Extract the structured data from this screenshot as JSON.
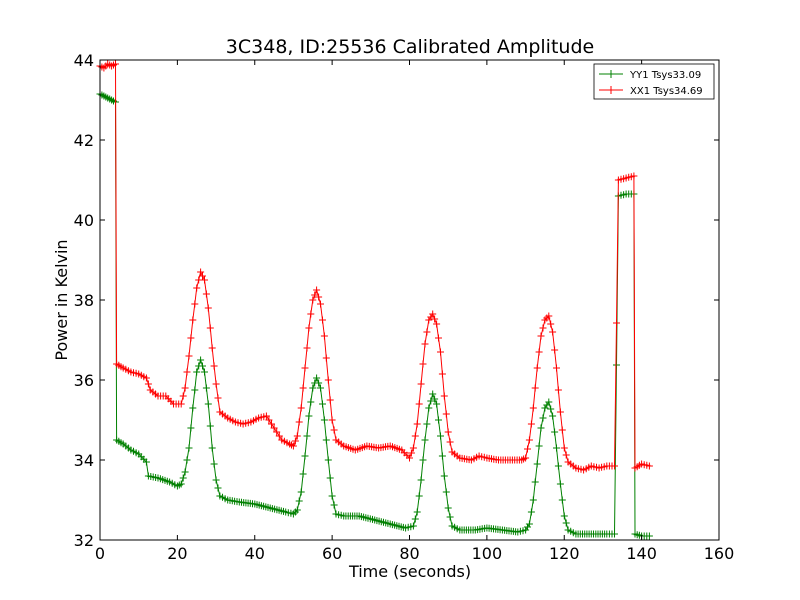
{
  "chart_data": {
    "type": "line",
    "title": "3C348, ID:25536 Calibrated Amplitude",
    "xlabel": "Time (seconds)",
    "ylabel": "Power in Kelvin",
    "xlim": [
      0,
      160
    ],
    "ylim": [
      32,
      44
    ],
    "xticks": [
      "0",
      "20",
      "40",
      "60",
      "80",
      "100",
      "120",
      "140",
      "160"
    ],
    "yticks": [
      "32",
      "34",
      "36",
      "38",
      "40",
      "42",
      "44"
    ],
    "grid": false,
    "legend_position": "top-right",
    "marker": "plus",
    "series": [
      {
        "name": "YY1 Tsys33.09",
        "color": "#008000",
        "points": [
          [
            0,
            43.15
          ],
          [
            1,
            43.1
          ],
          [
            2,
            43.05
          ],
          [
            3,
            43.0
          ],
          [
            4,
            42.95
          ],
          [
            4.3,
            34.5
          ],
          [
            6,
            34.4
          ],
          [
            8,
            34.25
          ],
          [
            10,
            34.15
          ],
          [
            12,
            33.95
          ],
          [
            12.5,
            33.6
          ],
          [
            15,
            33.55
          ],
          [
            18,
            33.45
          ],
          [
            20,
            33.35
          ],
          [
            21,
            33.4
          ],
          [
            22,
            33.7
          ],
          [
            23,
            34.3
          ],
          [
            24,
            35.3
          ],
          [
            25,
            36.2
          ],
          [
            26,
            36.5
          ],
          [
            27,
            36.2
          ],
          [
            28,
            35.4
          ],
          [
            29,
            34.3
          ],
          [
            30,
            33.5
          ],
          [
            31,
            33.1
          ],
          [
            33,
            33.0
          ],
          [
            36,
            32.95
          ],
          [
            40,
            32.9
          ],
          [
            44,
            32.8
          ],
          [
            48,
            32.7
          ],
          [
            50,
            32.65
          ],
          [
            51,
            32.75
          ],
          [
            52,
            33.2
          ],
          [
            53,
            34.1
          ],
          [
            54,
            35.1
          ],
          [
            55,
            35.8
          ],
          [
            56,
            36.05
          ],
          [
            57,
            35.8
          ],
          [
            58,
            35.0
          ],
          [
            59,
            34.0
          ],
          [
            60,
            33.1
          ],
          [
            61,
            32.65
          ],
          [
            63,
            32.6
          ],
          [
            67,
            32.6
          ],
          [
            71,
            32.5
          ],
          [
            75,
            32.4
          ],
          [
            79,
            32.3
          ],
          [
            81,
            32.35
          ],
          [
            82,
            32.7
          ],
          [
            83,
            33.5
          ],
          [
            84,
            34.5
          ],
          [
            85,
            35.3
          ],
          [
            86,
            35.65
          ],
          [
            87,
            35.4
          ],
          [
            88,
            34.6
          ],
          [
            89,
            33.6
          ],
          [
            90,
            32.8
          ],
          [
            91,
            32.35
          ],
          [
            93,
            32.25
          ],
          [
            97,
            32.25
          ],
          [
            100,
            32.3
          ],
          [
            104,
            32.25
          ],
          [
            108,
            32.2
          ],
          [
            110,
            32.25
          ],
          [
            111,
            32.4
          ],
          [
            112,
            33.0
          ],
          [
            113,
            33.9
          ],
          [
            114,
            34.8
          ],
          [
            115,
            35.3
          ],
          [
            116,
            35.45
          ],
          [
            117,
            35.1
          ],
          [
            118,
            34.3
          ],
          [
            119,
            33.4
          ],
          [
            120,
            32.6
          ],
          [
            121,
            32.25
          ],
          [
            123,
            32.15
          ],
          [
            127,
            32.15
          ],
          [
            131,
            32.15
          ],
          [
            133,
            32.15
          ],
          [
            134,
            40.6
          ],
          [
            136,
            40.65
          ],
          [
            138,
            40.65
          ],
          [
            138.3,
            32.15
          ],
          [
            140,
            32.1
          ],
          [
            142,
            32.1
          ]
        ]
      },
      {
        "name": "XX1 Tsys34.69",
        "color": "#ff0000",
        "points": [
          [
            0,
            43.85
          ],
          [
            1,
            43.8
          ],
          [
            2,
            43.9
          ],
          [
            3,
            43.85
          ],
          [
            4,
            43.9
          ],
          [
            4.3,
            36.4
          ],
          [
            6,
            36.3
          ],
          [
            8,
            36.2
          ],
          [
            10,
            36.15
          ],
          [
            12,
            36.05
          ],
          [
            13,
            35.75
          ],
          [
            15,
            35.6
          ],
          [
            17,
            35.6
          ],
          [
            19,
            35.4
          ],
          [
            21,
            35.4
          ],
          [
            22,
            35.8
          ],
          [
            23,
            36.6
          ],
          [
            24,
            37.5
          ],
          [
            25,
            38.3
          ],
          [
            26,
            38.7
          ],
          [
            27,
            38.5
          ],
          [
            28,
            37.8
          ],
          [
            29,
            36.8
          ],
          [
            30,
            35.9
          ],
          [
            31,
            35.2
          ],
          [
            33,
            35.05
          ],
          [
            35,
            34.95
          ],
          [
            37,
            34.9
          ],
          [
            39,
            34.95
          ],
          [
            41,
            35.05
          ],
          [
            43,
            35.1
          ],
          [
            45,
            34.8
          ],
          [
            47,
            34.5
          ],
          [
            49,
            34.4
          ],
          [
            50,
            34.35
          ],
          [
            51,
            34.6
          ],
          [
            52,
            35.3
          ],
          [
            53,
            36.3
          ],
          [
            54,
            37.3
          ],
          [
            55,
            38.0
          ],
          [
            56,
            38.25
          ],
          [
            57,
            37.9
          ],
          [
            58,
            37.1
          ],
          [
            59,
            36.0
          ],
          [
            60,
            35.0
          ],
          [
            61,
            34.5
          ],
          [
            63,
            34.35
          ],
          [
            66,
            34.25
          ],
          [
            69,
            34.35
          ],
          [
            72,
            34.3
          ],
          [
            75,
            34.35
          ],
          [
            78,
            34.25
          ],
          [
            80,
            34.05
          ],
          [
            81,
            34.3
          ],
          [
            82,
            34.9
          ],
          [
            83,
            35.9
          ],
          [
            84,
            36.9
          ],
          [
            85,
            37.5
          ],
          [
            86,
            37.65
          ],
          [
            87,
            37.4
          ],
          [
            88,
            36.7
          ],
          [
            89,
            35.6
          ],
          [
            90,
            34.7
          ],
          [
            91,
            34.2
          ],
          [
            93,
            34.05
          ],
          [
            96,
            34.0
          ],
          [
            98,
            34.1
          ],
          [
            100,
            34.05
          ],
          [
            103,
            34.0
          ],
          [
            106,
            34.0
          ],
          [
            109,
            34.0
          ],
          [
            110,
            34.05
          ],
          [
            111,
            34.5
          ],
          [
            112,
            35.3
          ],
          [
            113,
            36.3
          ],
          [
            114,
            37.1
          ],
          [
            115,
            37.5
          ],
          [
            116,
            37.6
          ],
          [
            117,
            37.2
          ],
          [
            118,
            36.3
          ],
          [
            119,
            35.2
          ],
          [
            120,
            34.3
          ],
          [
            121,
            33.95
          ],
          [
            123,
            33.8
          ],
          [
            125,
            33.75
          ],
          [
            127,
            33.85
          ],
          [
            129,
            33.8
          ],
          [
            131,
            33.85
          ],
          [
            133,
            33.85
          ],
          [
            134,
            41.0
          ],
          [
            136,
            41.05
          ],
          [
            138,
            41.1
          ],
          [
            138.3,
            33.8
          ],
          [
            140,
            33.9
          ],
          [
            142,
            33.85
          ]
        ]
      }
    ]
  }
}
